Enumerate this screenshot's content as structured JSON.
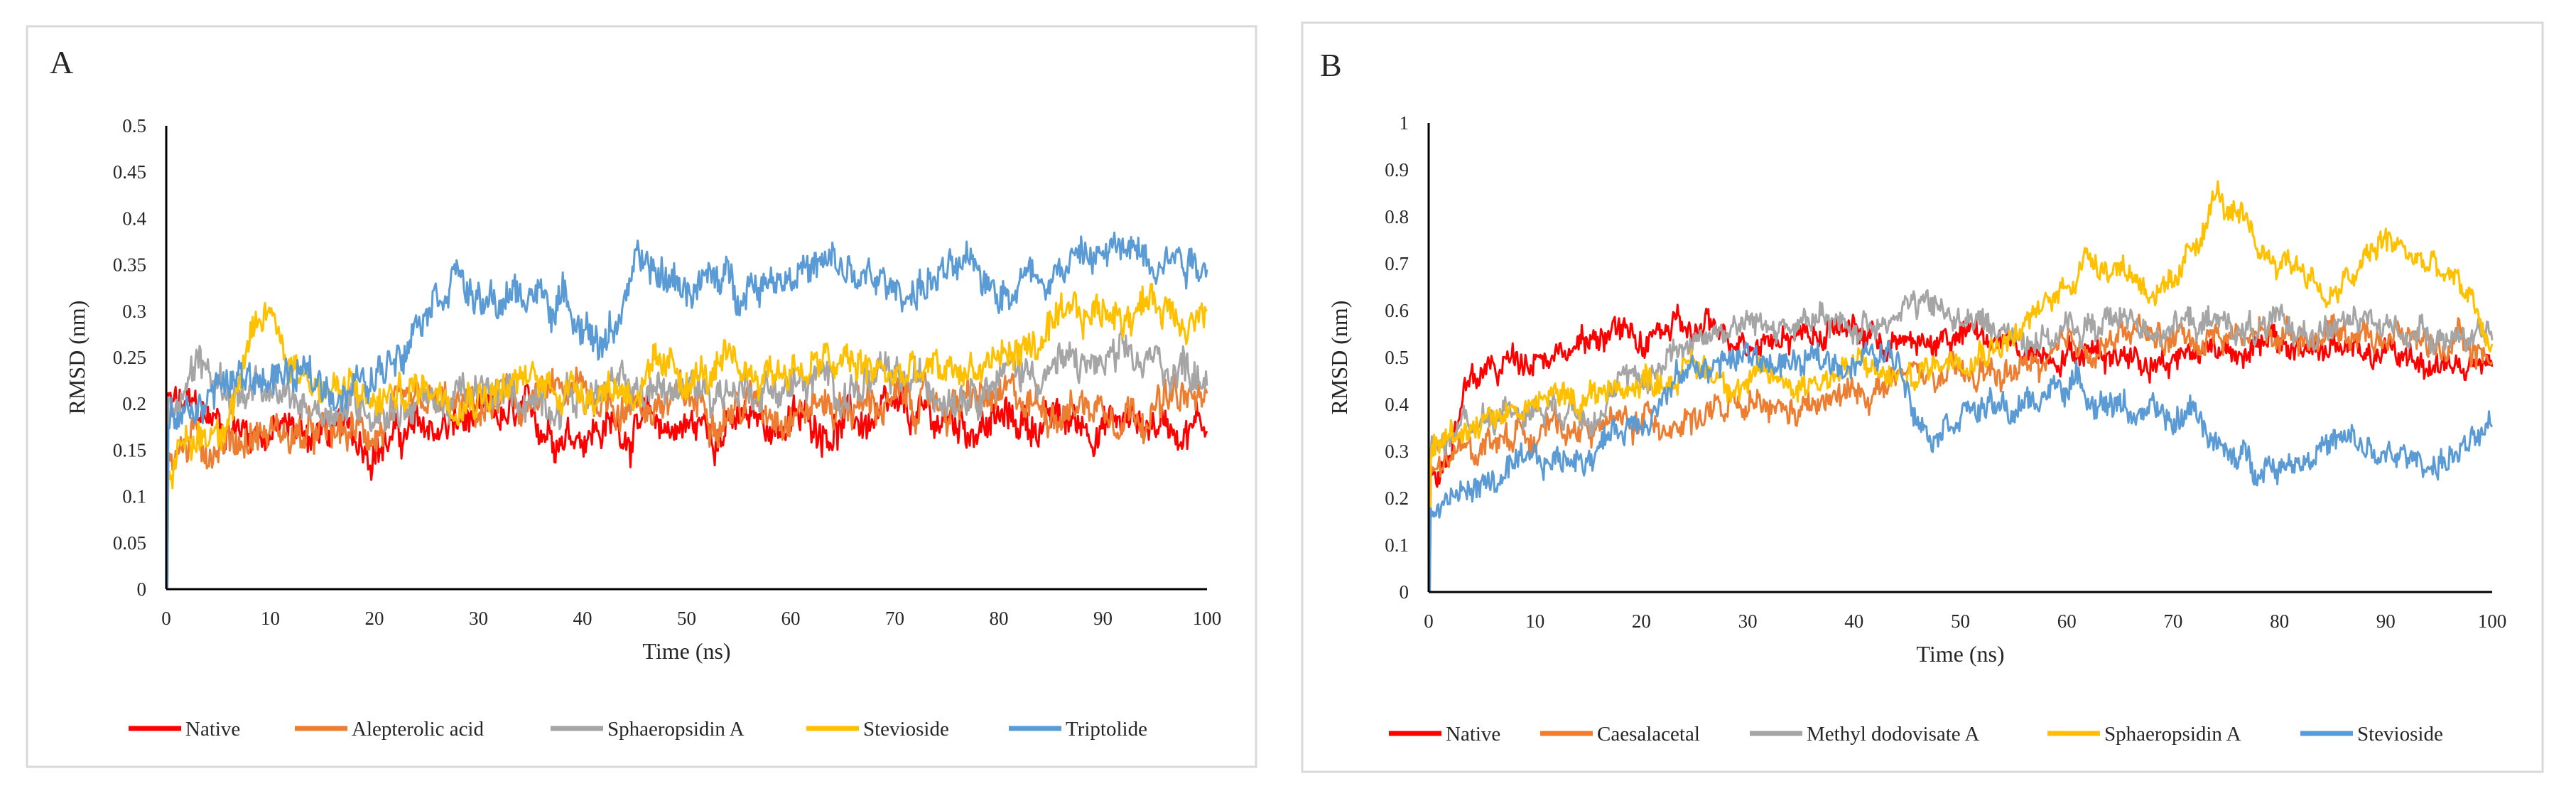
{
  "colors": {
    "red": "#FF0000",
    "orange": "#ED7D31",
    "gray": "#A5A5A5",
    "gold": "#FFC000",
    "blue": "#5B9BD5",
    "axis": "#000000",
    "frame": "#D9D9D9"
  },
  "chart_data": [
    {
      "type": "line",
      "panel_label": "A",
      "xlabel": "Time (ns)",
      "ylabel": "RMSD (nm)",
      "xlim": [
        0,
        100
      ],
      "ylim": [
        0,
        0.5
      ],
      "xticks": [
        0,
        10,
        20,
        30,
        40,
        50,
        60,
        70,
        80,
        90,
        100
      ],
      "yticks": [
        0,
        0.05,
        0.1,
        0.15,
        0.2,
        0.25,
        0.3,
        0.35,
        0.4,
        0.45,
        0.5
      ],
      "ytick_labels": [
        "0",
        "0.05",
        "0.1",
        "0.15",
        "0.2",
        "0.25",
        "0.3",
        "0.35",
        "0.4",
        "0.45",
        "0.5"
      ],
      "grid": false,
      "legend_position": "bottom",
      "noise_amplitude": 0.03,
      "series": [
        {
          "name": "Native",
          "color": "#FF0000",
          "points": [
            [
              0,
              0.2
            ],
            [
              5,
              0.18
            ],
            [
              10,
              0.17
            ],
            [
              15,
              0.17
            ],
            [
              20,
              0.16
            ],
            [
              25,
              0.17
            ],
            [
              30,
              0.18
            ],
            [
              40,
              0.175
            ],
            [
              50,
              0.175
            ],
            [
              60,
              0.18
            ],
            [
              70,
              0.18
            ],
            [
              80,
              0.18
            ],
            [
              90,
              0.18
            ],
            [
              100,
              0.18
            ]
          ]
        },
        {
          "name": "Alepterolic acid",
          "color": "#ED7D31",
          "points": [
            [
              0,
              0.15
            ],
            [
              5,
              0.16
            ],
            [
              10,
              0.17
            ],
            [
              15,
              0.16
            ],
            [
              20,
              0.17
            ],
            [
              25,
              0.19
            ],
            [
              30,
              0.19
            ],
            [
              35,
              0.2
            ],
            [
              40,
              0.21
            ],
            [
              45,
              0.2
            ],
            [
              50,
              0.2
            ],
            [
              60,
              0.2
            ],
            [
              70,
              0.2
            ],
            [
              80,
              0.2
            ],
            [
              90,
              0.2
            ],
            [
              100,
              0.2
            ]
          ]
        },
        {
          "name": "Sphaeropsidin A",
          "color": "#A5A5A5",
          "points": [
            [
              0,
              0.2
            ],
            [
              3,
              0.25
            ],
            [
              5,
              0.22
            ],
            [
              10,
              0.2
            ],
            [
              15,
              0.2
            ],
            [
              20,
              0.2
            ],
            [
              40,
              0.21
            ],
            [
              60,
              0.22
            ],
            [
              75,
              0.22
            ],
            [
              78,
              0.23
            ],
            [
              85,
              0.24
            ],
            [
              90,
              0.24
            ],
            [
              100,
              0.24
            ]
          ]
        },
        {
          "name": "Stevioside",
          "color": "#FFC000",
          "points": [
            [
              0,
              0.13
            ],
            [
              5,
              0.18
            ],
            [
              10,
              0.3
            ],
            [
              12,
              0.25
            ],
            [
              15,
              0.22
            ],
            [
              20,
              0.2
            ],
            [
              25,
              0.22
            ],
            [
              30,
              0.22
            ],
            [
              40,
              0.22
            ],
            [
              45,
              0.22
            ],
            [
              50,
              0.23
            ],
            [
              55,
              0.23
            ],
            [
              60,
              0.24
            ],
            [
              65,
              0.24
            ],
            [
              70,
              0.23
            ],
            [
              75,
              0.23
            ],
            [
              80,
              0.25
            ],
            [
              85,
              0.27
            ],
            [
              90,
              0.3
            ],
            [
              95,
              0.31
            ],
            [
              100,
              0.3
            ]
          ]
        },
        {
          "name": "Triptolide",
          "color": "#5B9BD5",
          "points": [
            [
              0,
              0.17
            ],
            [
              5,
              0.22
            ],
            [
              10,
              0.23
            ],
            [
              15,
              0.22
            ],
            [
              20,
              0.22
            ],
            [
              25,
              0.32
            ],
            [
              28,
              0.35
            ],
            [
              30,
              0.3
            ],
            [
              35,
              0.32
            ],
            [
              40,
              0.3
            ],
            [
              42,
              0.26
            ],
            [
              45,
              0.34
            ],
            [
              50,
              0.33
            ],
            [
              55,
              0.33
            ],
            [
              60,
              0.35
            ],
            [
              65,
              0.34
            ],
            [
              70,
              0.32
            ],
            [
              75,
              0.34
            ],
            [
              80,
              0.33
            ],
            [
              85,
              0.35
            ],
            [
              90,
              0.36
            ],
            [
              95,
              0.37
            ],
            [
              100,
              0.36
            ]
          ]
        }
      ]
    },
    {
      "type": "line",
      "panel_label": "B",
      "xlabel": "Time (ns)",
      "ylabel": "RMSD (nm)",
      "xlim": [
        0,
        100
      ],
      "ylim": [
        0,
        1
      ],
      "xticks": [
        0,
        10,
        20,
        30,
        40,
        50,
        60,
        70,
        80,
        90,
        100
      ],
      "yticks": [
        0,
        0.1,
        0.2,
        0.3,
        0.4,
        0.5,
        0.6,
        0.7,
        0.8,
        0.9,
        1
      ],
      "ytick_labels": [
        "0",
        "0.1",
        "0.2",
        "0.3",
        "0.4",
        "0.5",
        "0.6",
        "0.7",
        "0.8",
        "0.9",
        "1"
      ],
      "grid": false,
      "legend_position": "bottom",
      "noise_amplitude": 0.045,
      "series": [
        {
          "name": "Native",
          "color": "#FF0000",
          "points": [
            [
              0,
              0.25
            ],
            [
              2,
              0.3
            ],
            [
              4,
              0.45
            ],
            [
              10,
              0.52
            ],
            [
              15,
              0.52
            ],
            [
              17,
              0.57
            ],
            [
              20,
              0.52
            ],
            [
              22,
              0.56
            ],
            [
              25,
              0.55
            ],
            [
              30,
              0.55
            ],
            [
              40,
              0.56
            ],
            [
              45,
              0.52
            ],
            [
              50,
              0.55
            ],
            [
              55,
              0.52
            ],
            [
              60,
              0.52
            ],
            [
              70,
              0.5
            ],
            [
              75,
              0.53
            ],
            [
              80,
              0.52
            ],
            [
              85,
              0.52
            ],
            [
              90,
              0.5
            ],
            [
              95,
              0.49
            ],
            [
              100,
              0.47
            ]
          ]
        },
        {
          "name": "Caesalacetal",
          "color": "#ED7D31",
          "points": [
            [
              0,
              0.25
            ],
            [
              5,
              0.32
            ],
            [
              10,
              0.35
            ],
            [
              15,
              0.35
            ],
            [
              20,
              0.36
            ],
            [
              25,
              0.38
            ],
            [
              30,
              0.38
            ],
            [
              35,
              0.38
            ],
            [
              40,
              0.42
            ],
            [
              45,
              0.46
            ],
            [
              50,
              0.45
            ],
            [
              55,
              0.47
            ],
            [
              60,
              0.5
            ],
            [
              65,
              0.55
            ],
            [
              70,
              0.54
            ],
            [
              75,
              0.55
            ],
            [
              80,
              0.55
            ],
            [
              85,
              0.56
            ],
            [
              90,
              0.55
            ],
            [
              95,
              0.53
            ],
            [
              100,
              0.5
            ]
          ]
        },
        {
          "name": "Methyl dodovisate A",
          "color": "#A5A5A5",
          "points": [
            [
              0,
              0.3
            ],
            [
              5,
              0.38
            ],
            [
              10,
              0.4
            ],
            [
              15,
              0.4
            ],
            [
              20,
              0.45
            ],
            [
              25,
              0.55
            ],
            [
              30,
              0.57
            ],
            [
              35,
              0.57
            ],
            [
              40,
              0.56
            ],
            [
              45,
              0.62
            ],
            [
              50,
              0.58
            ],
            [
              55,
              0.55
            ],
            [
              60,
              0.55
            ],
            [
              65,
              0.58
            ],
            [
              70,
              0.57
            ],
            [
              75,
              0.57
            ],
            [
              80,
              0.55
            ],
            [
              85,
              0.57
            ],
            [
              90,
              0.56
            ],
            [
              95,
              0.56
            ],
            [
              100,
              0.53
            ]
          ]
        },
        {
          "name": "Sphaeropsidin A",
          "color": "#FFC000",
          "points": [
            [
              0,
              0.3
            ],
            [
              5,
              0.38
            ],
            [
              10,
              0.4
            ],
            [
              15,
              0.42
            ],
            [
              20,
              0.45
            ],
            [
              25,
              0.48
            ],
            [
              30,
              0.45
            ],
            [
              35,
              0.45
            ],
            [
              40,
              0.48
            ],
            [
              45,
              0.45
            ],
            [
              50,
              0.52
            ],
            [
              55,
              0.55
            ],
            [
              58,
              0.6
            ],
            [
              62,
              0.72
            ],
            [
              65,
              0.7
            ],
            [
              70,
              0.62
            ],
            [
              74,
              0.85
            ],
            [
              78,
              0.72
            ],
            [
              82,
              0.7
            ],
            [
              85,
              0.62
            ],
            [
              90,
              0.75
            ],
            [
              95,
              0.68
            ],
            [
              98,
              0.62
            ],
            [
              100,
              0.52
            ]
          ]
        },
        {
          "name": "Stevioside",
          "color": "#5B9BD5",
          "points": [
            [
              0,
              0.18
            ],
            [
              5,
              0.23
            ],
            [
              10,
              0.26
            ],
            [
              15,
              0.3
            ],
            [
              20,
              0.38
            ],
            [
              25,
              0.48
            ],
            [
              30,
              0.5
            ],
            [
              35,
              0.48
            ],
            [
              40,
              0.5
            ],
            [
              44,
              0.5
            ],
            [
              47,
              0.35
            ],
            [
              50,
              0.4
            ],
            [
              55,
              0.38
            ],
            [
              60,
              0.45
            ],
            [
              65,
              0.4
            ],
            [
              70,
              0.35
            ],
            [
              72,
              0.4
            ],
            [
              75,
              0.28
            ],
            [
              80,
              0.28
            ],
            [
              85,
              0.32
            ],
            [
              88,
              0.3
            ],
            [
              90,
              0.28
            ],
            [
              95,
              0.28
            ],
            [
              100,
              0.33
            ]
          ]
        }
      ]
    }
  ]
}
